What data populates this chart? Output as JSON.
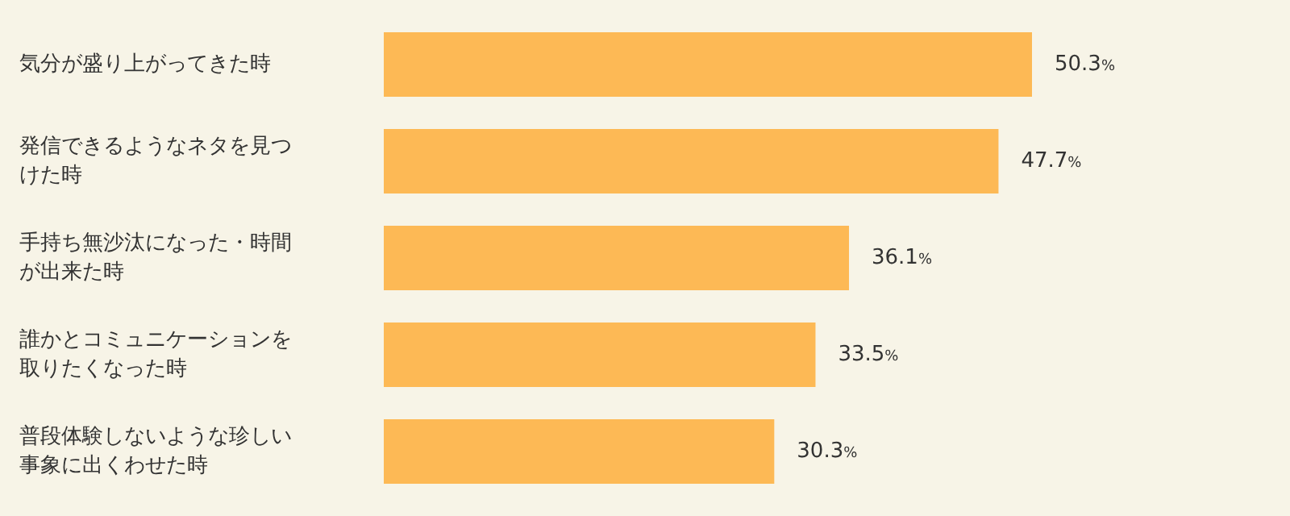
{
  "chart_data": {
    "type": "bar",
    "orientation": "horizontal",
    "categories": [
      "気分が盛り上がってきた時",
      "発信できるようなネタを見つけた時",
      "手持ち無沙汰になった・時間が出来た時",
      "誰かとコミュニケーションを取りたくなった時",
      "普段体験しないような珍しい事象に出くわせた時"
    ],
    "values": [
      50.3,
      47.7,
      36.1,
      33.5,
      30.3
    ],
    "value_labels": [
      "50.3%",
      "47.7%",
      "36.1%",
      "33.5%",
      "30.3%"
    ],
    "color": "#fdb955"
  }
}
